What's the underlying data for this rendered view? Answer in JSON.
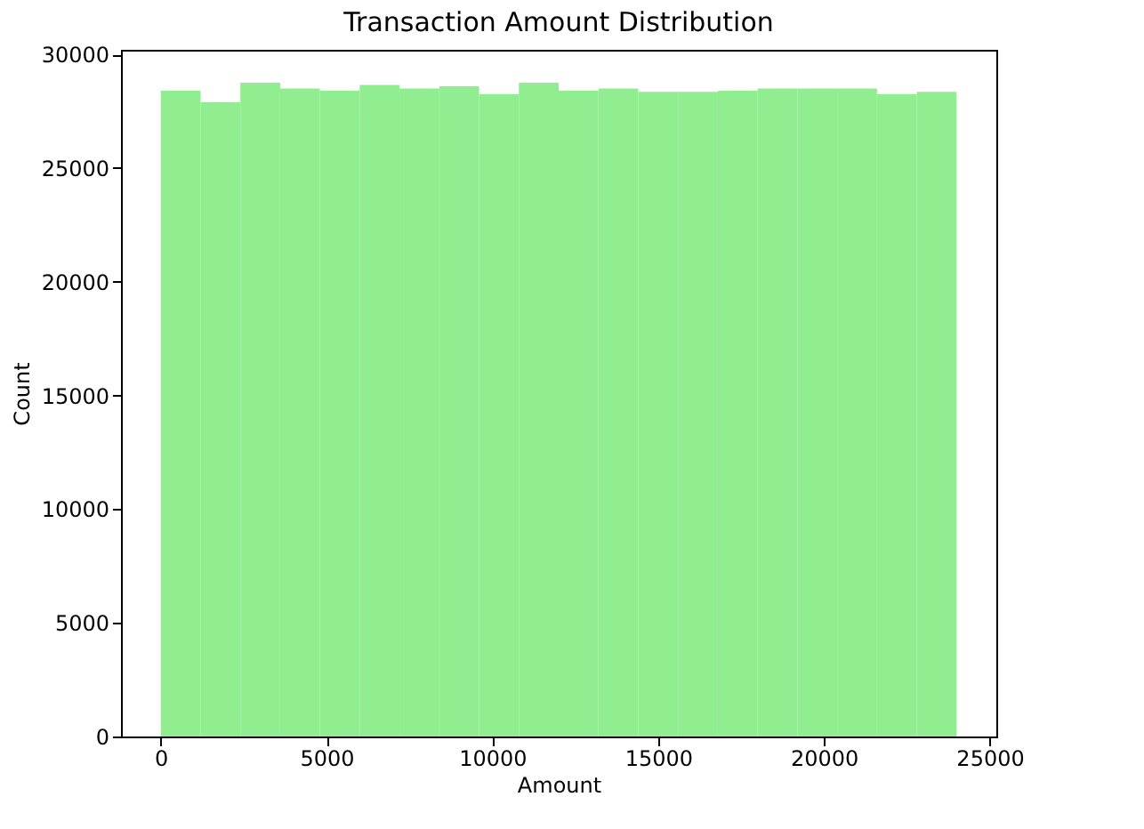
{
  "chart_data": {
    "type": "histogram",
    "title": "Transaction Amount Distribution",
    "xlabel": "Amount",
    "ylabel": "Count",
    "color": "#90ee90",
    "bins": [
      0,
      1200,
      2400,
      3600,
      4800,
      6000,
      7200,
      8400,
      9600,
      10800,
      12000,
      13200,
      14400,
      15600,
      16800,
      18000,
      19200,
      20400,
      21600,
      22800,
      24000
    ],
    "values": [
      28400,
      27900,
      28750,
      28500,
      28400,
      28650,
      28500,
      28600,
      28250,
      28750,
      28400,
      28500,
      28350,
      28350,
      28400,
      28500,
      28500,
      28500,
      28250,
      28350
    ],
    "xlim": [
      -1200,
      25200
    ],
    "xticks": [
      0,
      5000,
      10000,
      15000,
      20000,
      25000
    ],
    "ylim": [
      0,
      30200
    ],
    "yticks": [
      0,
      5000,
      10000,
      15000,
      20000,
      25000,
      30000
    ],
    "grid": false
  }
}
